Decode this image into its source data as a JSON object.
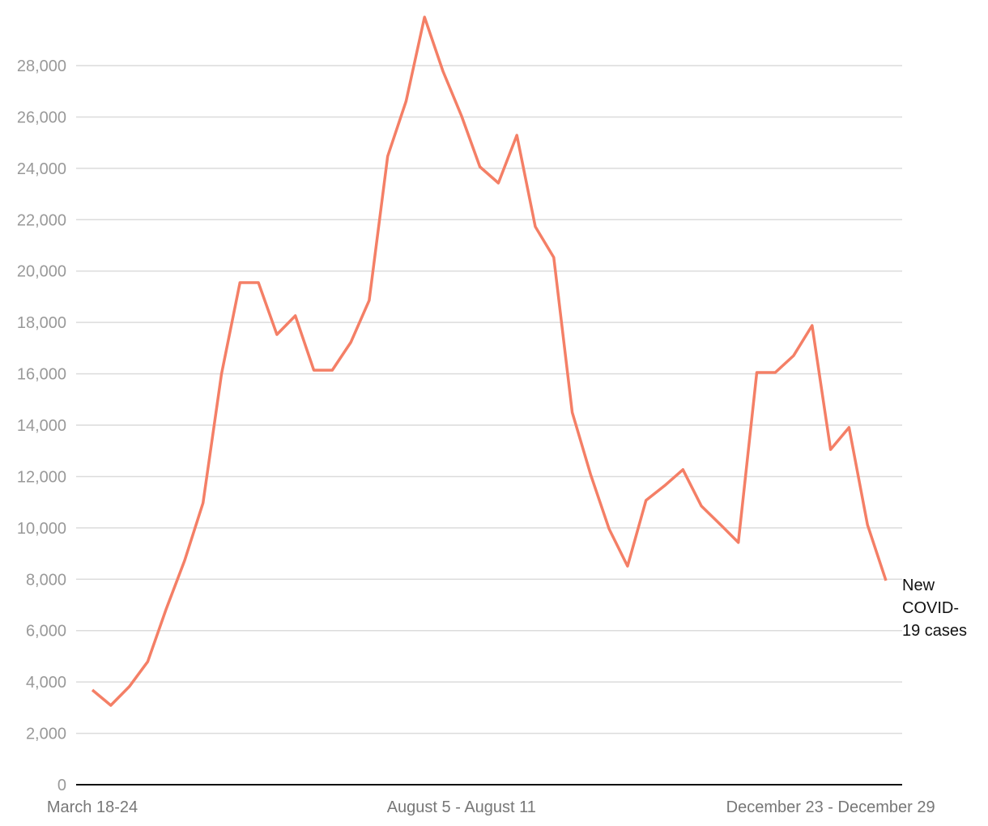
{
  "chart_data": {
    "type": "line",
    "categories": [
      "March 18-24",
      null,
      null,
      null,
      null,
      null,
      null,
      null,
      null,
      null,
      null,
      null,
      null,
      null,
      null,
      null,
      null,
      null,
      null,
      null,
      "August 5 - August 11",
      null,
      null,
      null,
      null,
      null,
      null,
      null,
      null,
      null,
      null,
      null,
      null,
      null,
      null,
      null,
      null,
      null,
      null,
      null,
      "December 23 - December 29",
      null,
      null,
      null
    ],
    "series": [
      {
        "name": "New COVID-19 cases",
        "color": "#f47f66",
        "values": [
          3690,
          3090,
          3820,
          4790,
          6840,
          8730,
          10970,
          15990,
          19550,
          19550,
          17530,
          18260,
          16140,
          16140,
          17220,
          18860,
          24470,
          26610,
          29890,
          27780,
          26050,
          24060,
          23430,
          25290,
          21730,
          20530,
          14500,
          12080,
          9960,
          8510,
          11070,
          11640,
          12270,
          10850,
          10150,
          9430,
          16050,
          16050,
          16710,
          17880,
          13050,
          13910,
          10120,
          7950
        ]
      }
    ],
    "ylim": [
      0,
      30000
    ],
    "yticks": [
      0,
      {
        "value": 2000,
        "label": "2,000"
      },
      {
        "value": 4000,
        "label": "4,000"
      },
      {
        "value": 6000,
        "label": "6,000"
      },
      {
        "value": 8000,
        "label": "8,000"
      },
      {
        "value": 10000,
        "label": "10,000"
      },
      {
        "value": 12000,
        "label": "12,000"
      },
      {
        "value": 14000,
        "label": "14,000"
      },
      {
        "value": 16000,
        "label": "16,000"
      },
      {
        "value": 18000,
        "label": "18,000"
      },
      {
        "value": 20000,
        "label": "20,000"
      },
      {
        "value": 22000,
        "label": "22,000"
      },
      {
        "value": 24000,
        "label": "24,000"
      },
      {
        "value": 26000,
        "label": "26,000"
      },
      {
        "value": 28000,
        "label": "28,000"
      }
    ],
    "grid": true
  }
}
